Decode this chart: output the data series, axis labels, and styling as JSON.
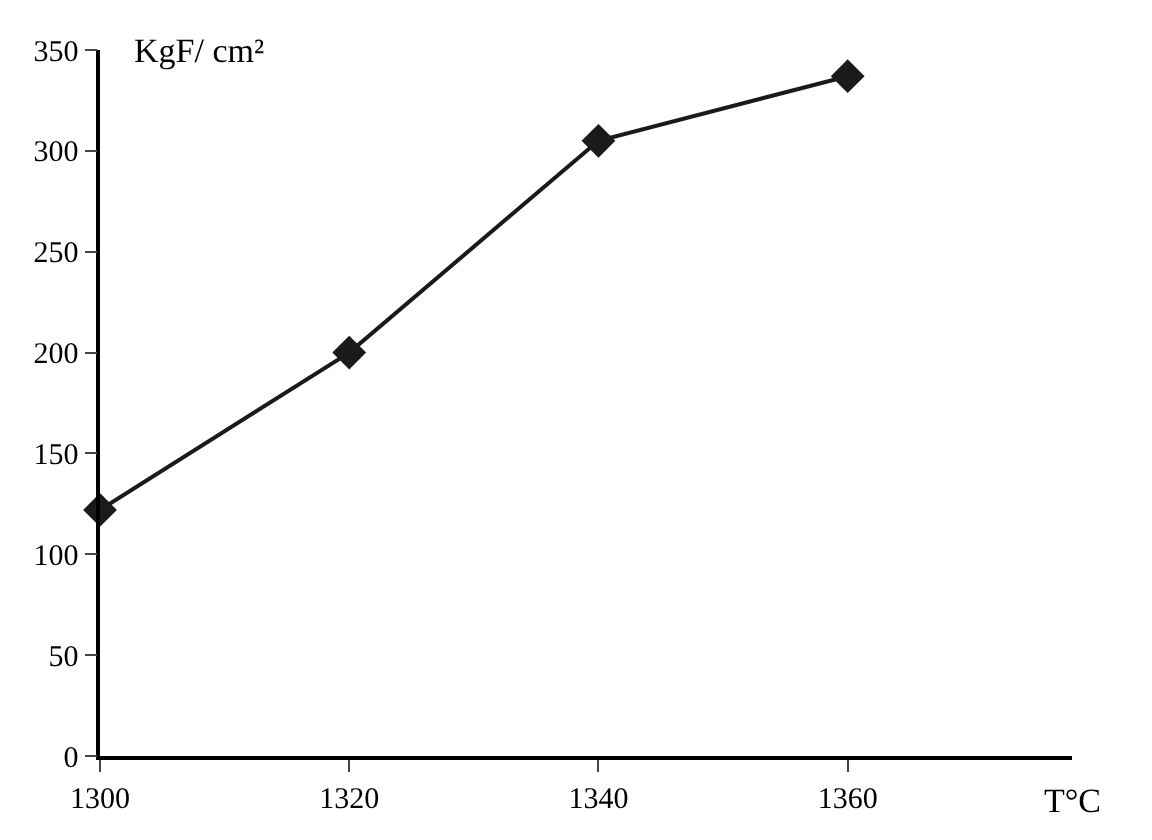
{
  "chart_data": {
    "type": "line",
    "xlabel": "T°C",
    "ylabel": "KgF/ cm²",
    "x": [
      1300,
      1320,
      1340,
      1360
    ],
    "series": [
      {
        "color": "#1a1a1a",
        "values": [
          122,
          200,
          305,
          337
        ]
      }
    ],
    "xlim": [
      1300,
      1378
    ],
    "xticks": [
      1300,
      1320,
      1340,
      1360
    ],
    "ylim": [
      0,
      350
    ],
    "yticks": [
      0,
      50,
      100,
      150,
      200,
      250,
      300,
      350
    ],
    "marker": "diamond",
    "line_style": "solid"
  }
}
